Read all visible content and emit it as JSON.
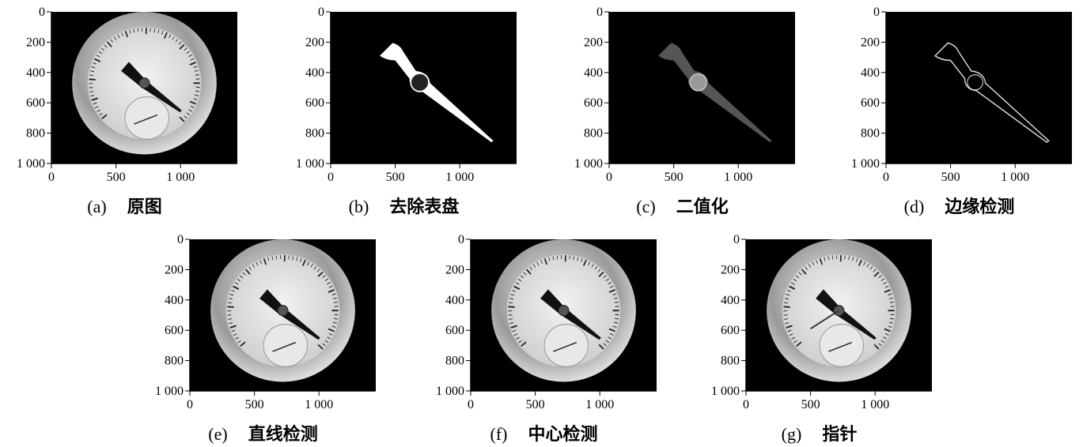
{
  "figure": {
    "panels": [
      {
        "label": "(a)",
        "caption": "原图",
        "xlim": [
          0,
          1440
        ],
        "ylim": [
          0,
          1000
        ],
        "xticks": [
          0,
          500,
          {
            "value": 1000,
            "label": "1 000"
          }
        ],
        "yticks": [
          0,
          200,
          400,
          600,
          800,
          {
            "value": 1000,
            "label": "1 000"
          }
        ]
      },
      {
        "label": "(b)",
        "caption": "去除表盘",
        "xlim": [
          0,
          1440
        ],
        "ylim": [
          0,
          1000
        ],
        "xticks": [
          0,
          500,
          {
            "value": 1000,
            "label": "1 000"
          }
        ],
        "yticks": [
          0,
          200,
          400,
          600,
          800,
          {
            "value": 1000,
            "label": "1 000"
          }
        ]
      },
      {
        "label": "(c)",
        "caption": "二值化",
        "xlim": [
          0,
          1440
        ],
        "ylim": [
          0,
          1000
        ],
        "xticks": [
          0,
          500,
          {
            "value": 1000,
            "label": "1 000"
          }
        ],
        "yticks": [
          0,
          200,
          400,
          600,
          800,
          {
            "value": 1000,
            "label": "1 000"
          }
        ]
      },
      {
        "label": "(d)",
        "caption": "边缘检测",
        "xlim": [
          0,
          1440
        ],
        "ylim": [
          0,
          1000
        ],
        "xticks": [
          0,
          500,
          {
            "value": 1000,
            "label": "1 000"
          }
        ],
        "yticks": [
          0,
          200,
          400,
          600,
          800,
          {
            "value": 1000,
            "label": "1 000"
          }
        ]
      },
      {
        "label": "(e)",
        "caption": "直线检测",
        "xlim": [
          0,
          1440
        ],
        "ylim": [
          0,
          1000
        ],
        "xticks": [
          0,
          500,
          {
            "value": 1000,
            "label": "1 000"
          }
        ],
        "yticks": [
          0,
          200,
          400,
          600,
          800,
          {
            "value": 1000,
            "label": "1 000"
          }
        ]
      },
      {
        "label": "(f)",
        "caption": "中心检测",
        "xlim": [
          0,
          1440
        ],
        "ylim": [
          0,
          1000
        ],
        "xticks": [
          0,
          500,
          {
            "value": 1000,
            "label": "1 000"
          }
        ],
        "yticks": [
          0,
          200,
          400,
          600,
          800,
          {
            "value": 1000,
            "label": "1 000"
          }
        ]
      },
      {
        "label": "(g)",
        "caption": "指针",
        "xlim": [
          0,
          1440
        ],
        "ylim": [
          0,
          1000
        ],
        "xticks": [
          0,
          500,
          {
            "value": 1000,
            "label": "1 000"
          }
        ],
        "yticks": [
          0,
          200,
          400,
          600,
          800,
          {
            "value": 1000,
            "label": "1 000"
          }
        ]
      }
    ]
  }
}
